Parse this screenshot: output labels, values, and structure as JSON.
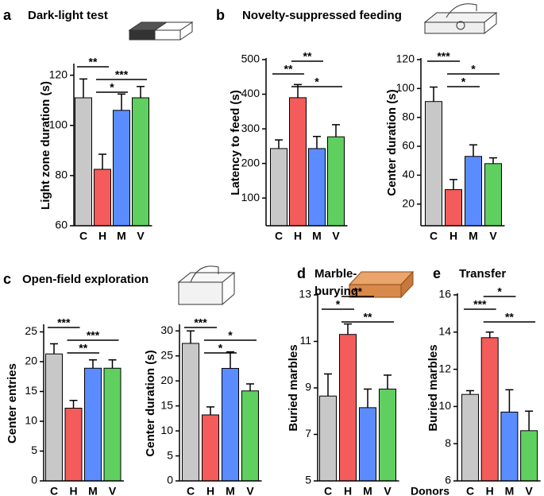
{
  "chart_data": [
    {
      "type": "bar",
      "panel": "a",
      "title": "Dark-light test",
      "ylabel": "Light zone duration (s)",
      "categories": [
        "C",
        "H",
        "M",
        "V"
      ],
      "values": [
        111,
        82.5,
        106,
        111
      ],
      "errors": [
        7.5,
        6,
        6.5,
        4.5
      ],
      "colors": [
        "#c8c8c8",
        "#f45b5b",
        "#5b8cff",
        "#5fcf5f"
      ],
      "ylim": [
        60,
        124
      ],
      "yticks": [
        60,
        80,
        100,
        120
      ],
      "annotations": [
        {
          "text": "**",
          "pair": [
            0,
            1
          ]
        },
        {
          "text": "***",
          "pair": [
            1,
            3
          ]
        },
        {
          "text": "*",
          "pair": [
            1,
            2
          ]
        }
      ]
    },
    {
      "type": "bar",
      "panel": "b",
      "title": "Novelty-suppressed feeding",
      "ylabel": "Latency to feed (s)",
      "categories": [
        "C",
        "H",
        "M",
        "V"
      ],
      "values": [
        243,
        390,
        243,
        277
      ],
      "errors": [
        25,
        38,
        35,
        35
      ],
      "colors": [
        "#c8c8c8",
        "#f45b5b",
        "#5b8cff",
        "#5fcf5f"
      ],
      "ylim": [
        20,
        500
      ],
      "yticks": [
        100,
        200,
        300,
        400,
        500
      ],
      "annotations": [
        {
          "text": "**",
          "pair": [
            1,
            2
          ]
        },
        {
          "text": "**",
          "pair": [
            0,
            1
          ]
        },
        {
          "text": "*",
          "pair": [
            1,
            3
          ]
        }
      ]
    },
    {
      "type": "bar",
      "ylabel": "Center duration (s)",
      "categories": [
        "C",
        "H",
        "M",
        "V"
      ],
      "values": [
        91,
        30,
        53,
        48
      ],
      "errors": [
        10,
        7,
        8,
        4
      ],
      "colors": [
        "#c8c8c8",
        "#f45b5b",
        "#5b8cff",
        "#5fcf5f"
      ],
      "ylim": [
        5,
        120
      ],
      "yticks": [
        20,
        40,
        60,
        80,
        100,
        120
      ],
      "annotations": [
        {
          "text": "***",
          "pair": [
            0,
            1
          ]
        },
        {
          "text": "*",
          "pair": [
            1,
            3
          ]
        },
        {
          "text": "*",
          "pair": [
            1,
            2
          ]
        }
      ]
    },
    {
      "type": "bar",
      "panel": "c",
      "title": "Open-field exploration",
      "ylabel": "Center entries",
      "categories": [
        "C",
        "H",
        "M",
        "V"
      ],
      "values": [
        21.3,
        12.2,
        18.9,
        18.9
      ],
      "errors": [
        1.7,
        1.3,
        1.4,
        1.4
      ],
      "colors": [
        "#c8c8c8",
        "#f45b5b",
        "#5b8cff",
        "#5fcf5f"
      ],
      "ylim": [
        0,
        26
      ],
      "yticks": [
        0,
        5,
        10,
        15,
        20,
        25
      ],
      "annotations": [
        {
          "text": "***",
          "pair": [
            0,
            1
          ]
        },
        {
          "text": "***",
          "pair": [
            1,
            3
          ]
        },
        {
          "text": "**",
          "pair": [
            1,
            2
          ]
        }
      ]
    },
    {
      "type": "bar",
      "ylabel": "Center duration (s)",
      "categories": [
        "C",
        "H",
        "M",
        "V"
      ],
      "values": [
        27.5,
        13.2,
        22.5,
        18
      ],
      "errors": [
        2.5,
        1.6,
        3.3,
        1.4
      ],
      "colors": [
        "#c8c8c8",
        "#f45b5b",
        "#5b8cff",
        "#5fcf5f"
      ],
      "ylim": [
        0,
        31
      ],
      "yticks": [
        0,
        5,
        10,
        15,
        20,
        25,
        30
      ],
      "annotations": [
        {
          "text": "***",
          "pair": [
            0,
            1
          ]
        },
        {
          "text": "*",
          "pair": [
            1,
            3
          ]
        },
        {
          "text": "*",
          "pair": [
            1,
            2
          ]
        }
      ]
    },
    {
      "type": "bar",
      "panel": "d",
      "title": [
        "Marble-",
        "burying"
      ],
      "ylabel": "Buried marbles",
      "categories": [
        "C",
        "H",
        "M",
        "V"
      ],
      "values": [
        8.65,
        11.3,
        8.15,
        8.95
      ],
      "errors": [
        0.95,
        0.45,
        0.8,
        0.6
      ],
      "colors": [
        "#c8c8c8",
        "#f45b5b",
        "#5b8cff",
        "#5fcf5f"
      ],
      "ylim": [
        5,
        13
      ],
      "yticks": [
        5,
        7,
        9,
        11,
        13
      ],
      "annotations": [
        {
          "text": "**",
          "pair": [
            1,
            2
          ]
        },
        {
          "text": "*",
          "pair": [
            0,
            1
          ]
        },
        {
          "text": "**",
          "pair": [
            1,
            3
          ]
        }
      ]
    },
    {
      "type": "bar",
      "panel": "e",
      "title": "Transfer",
      "ylabel": "Buried marbles",
      "xlabel": "Donors",
      "categories": [
        "C",
        "H",
        "M",
        "V"
      ],
      "values": [
        10.65,
        13.7,
        9.7,
        8.7
      ],
      "errors": [
        0.2,
        0.3,
        1.2,
        1.05
      ],
      "colors": [
        "#c8c8c8",
        "#f45b5b",
        "#5b8cff",
        "#5fcf5f"
      ],
      "ylim": [
        6,
        16
      ],
      "yticks": [
        6,
        8,
        10,
        12,
        14,
        16
      ],
      "annotations": [
        {
          "text": "*",
          "pair": [
            1,
            2
          ]
        },
        {
          "text": "***",
          "pair": [
            0,
            1
          ]
        },
        {
          "text": "**",
          "pair": [
            1,
            3
          ]
        }
      ]
    }
  ]
}
